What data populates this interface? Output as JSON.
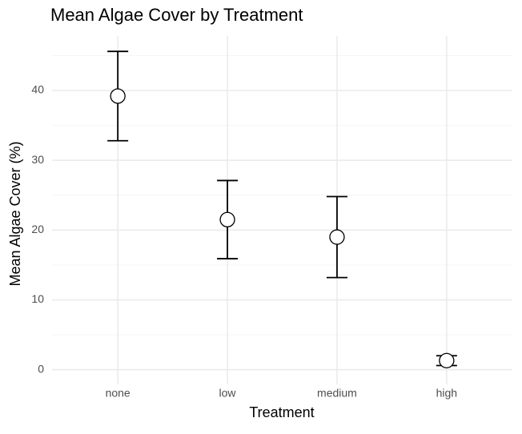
{
  "chart_data": {
    "type": "errorbar",
    "title": "Mean Algae Cover by Treatment",
    "x_label": "Treatment",
    "y_label": "Mean Algae Cover (%)",
    "categories": [
      "none",
      "low",
      "medium",
      "high"
    ],
    "values": [
      39.2,
      21.5,
      19.0,
      1.3
    ],
    "errors": [
      6.4,
      5.6,
      5.8,
      0.7
    ],
    "color": "#000000",
    "ylim": [
      -2.1,
      47.8
    ],
    "yticks": [
      0,
      10,
      20,
      30,
      40
    ],
    "minor_yticks": [
      5,
      15,
      25,
      35,
      45
    ],
    "grid": true
  }
}
